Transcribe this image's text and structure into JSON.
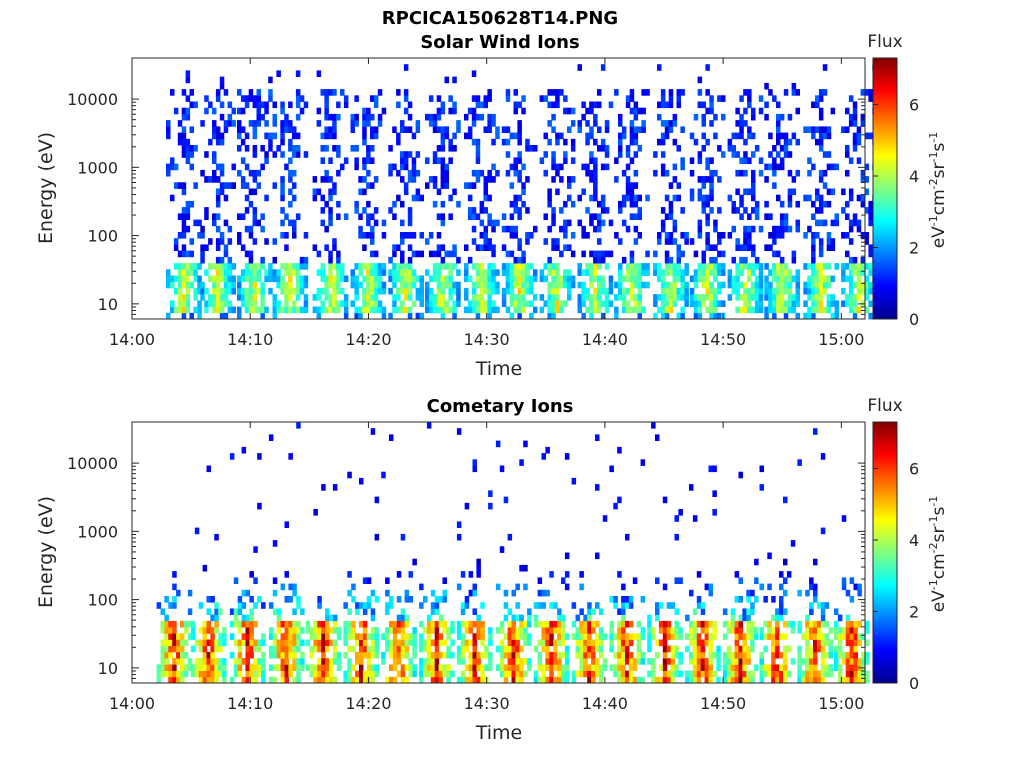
{
  "figure_title": "RPCICA150628T14.PNG",
  "chart_data": [
    {
      "type": "heatmap",
      "title": "Solar Wind Ions",
      "xlabel": "Time",
      "ylabel": "Energy (eV)",
      "x_ticks": [
        "14:00",
        "14:10",
        "14:20",
        "14:30",
        "14:40",
        "14:50",
        "15:00"
      ],
      "xlim": [
        "14:00",
        "15:02"
      ],
      "y_ticks": [
        "10",
        "100",
        "1000",
        "10000"
      ],
      "yscale": "log",
      "ylim": [
        6,
        40000
      ],
      "colorbar": {
        "title": "Flux",
        "label": "eV-1 cm-2 sr-1 s-1",
        "ticks": [
          "0",
          "2",
          "4",
          "6"
        ],
        "range": [
          0,
          7.3
        ],
        "colormap": "jet"
      },
      "sweep_times": [
        "14:04.2",
        "14:07.1",
        "14:10.2",
        "14:13.2",
        "14:16.6",
        "14:19.8",
        "14:23.0",
        "14:26.1",
        "14:29.4",
        "14:32.6",
        "14:35.8",
        "14:39.0",
        "14:42.1",
        "14:45.4",
        "14:48.5",
        "14:51.7",
        "14:54.8",
        "14:58.1",
        "15:01.3"
      ],
      "core_energy_eV": [
        12,
        35
      ],
      "core_peak_flux": 4.5,
      "tail_flux": 1.2,
      "tail_max_energy_eV": 15000
    },
    {
      "type": "heatmap",
      "title": "Cometary Ions",
      "xlabel": "Time",
      "ylabel": "Energy (eV)",
      "x_ticks": [
        "14:00",
        "14:10",
        "14:20",
        "14:30",
        "14:40",
        "14:50",
        "15:00"
      ],
      "xlim": [
        "14:00",
        "15:02"
      ],
      "y_ticks": [
        "10",
        "100",
        "1000",
        "10000"
      ],
      "yscale": "log",
      "ylim": [
        6,
        40000
      ],
      "colorbar": {
        "title": "Flux",
        "label": "eV-1 cm-2 sr-1 s-1",
        "ticks": [
          "0",
          "2",
          "4",
          "6"
        ],
        "range": [
          0,
          7.3
        ],
        "colormap": "jet"
      },
      "sweep_times": [
        "14:03.4",
        "14:06.3",
        "14:09.6",
        "14:12.9",
        "14:16.0",
        "14:19.2",
        "14:22.4",
        "14:25.6",
        "14:28.8",
        "14:32.1",
        "14:35.3",
        "14:38.5",
        "14:41.7",
        "14:44.9",
        "14:48.1",
        "14:51.3",
        "14:54.4",
        "14:57.6",
        "15:00.7"
      ],
      "core_energy_eV": [
        10,
        40
      ],
      "core_peak_flux": 6.6,
      "tail_flux": 2.5,
      "tail_max_energy_eV": 400
    }
  ]
}
